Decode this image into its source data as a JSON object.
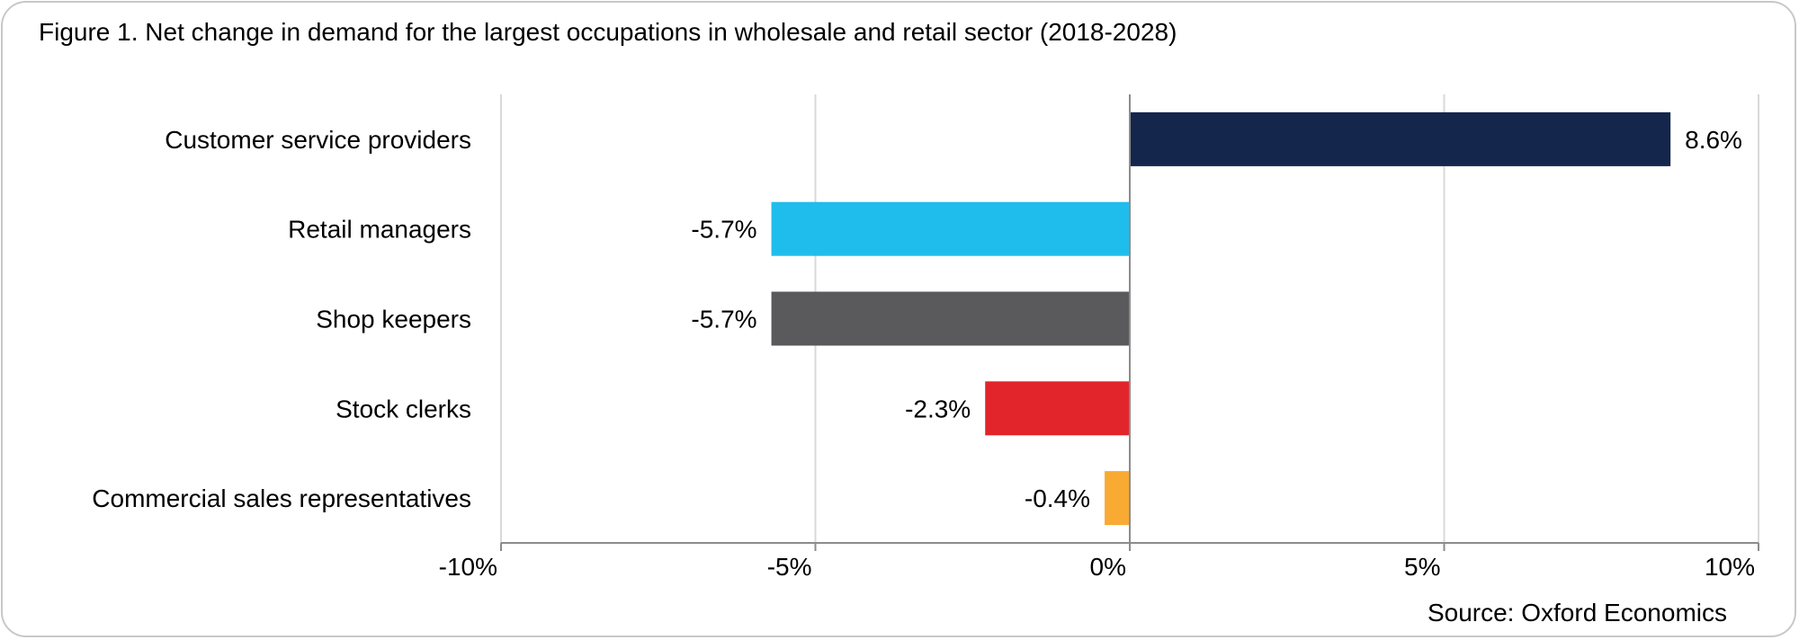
{
  "title": "Figure 1. Net change in demand for the largest occupations in wholesale and retail sector (2018-2028)",
  "source": "Source: Oxford Economics",
  "chart_data": {
    "type": "bar",
    "orientation": "horizontal",
    "categories": [
      "Customer service providers",
      "Retail managers",
      "Shop keepers",
      "Stock clerks",
      "Commercial sales representatives"
    ],
    "values": [
      8.6,
      -5.7,
      -5.7,
      -2.3,
      -0.4
    ],
    "value_labels": [
      "8.6%",
      "-5.7%",
      "-5.7%",
      "-2.3%",
      "-0.4%"
    ],
    "colors": [
      "#15264d",
      "#1fbdec",
      "#5a5a5c",
      "#e1252a",
      "#f9aa32"
    ],
    "xlim": [
      -10,
      10
    ],
    "xticks": [
      -10,
      -5,
      0,
      5,
      10
    ],
    "xtick_labels": [
      "-10%",
      "-5%",
      "0%",
      "5%",
      "10%"
    ],
    "grid": true,
    "legend": "none"
  }
}
